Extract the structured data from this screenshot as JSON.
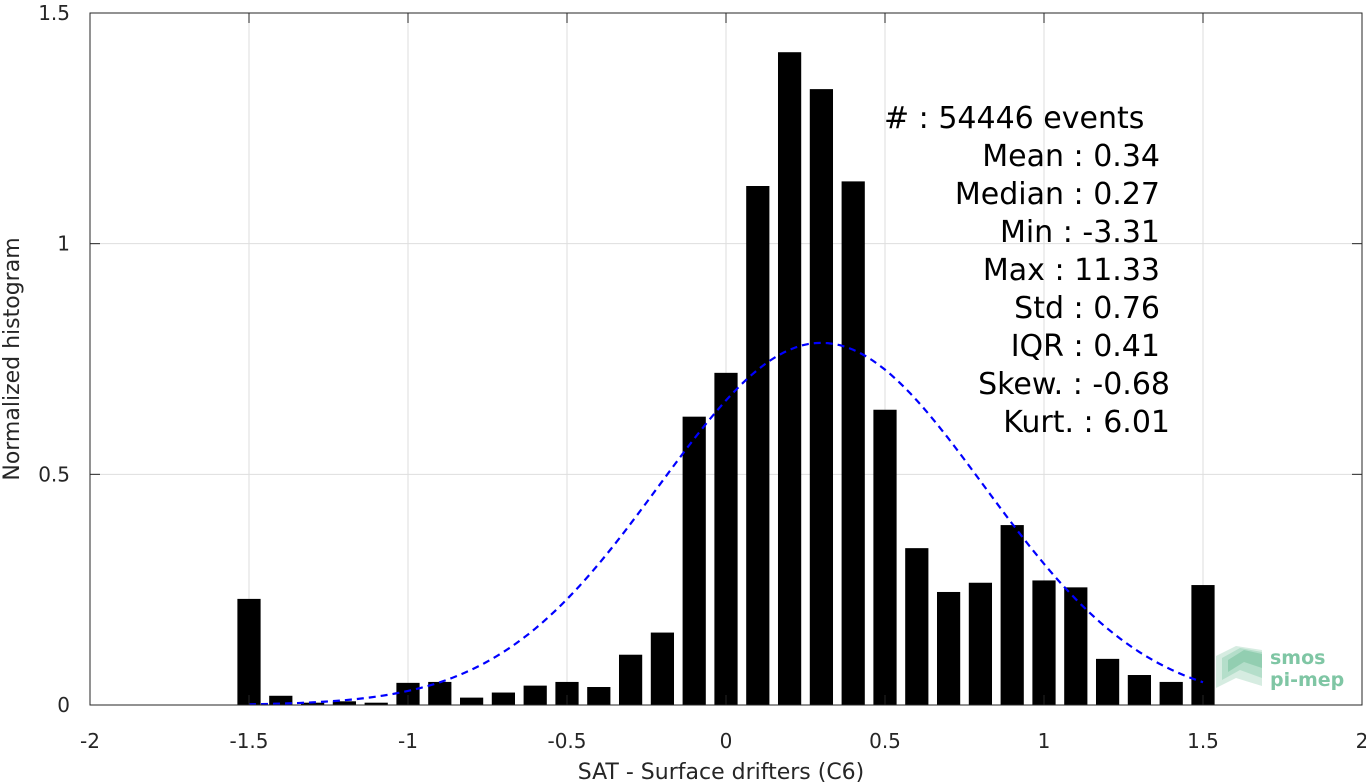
{
  "chart_data": {
    "type": "bar",
    "xlabel": "SAT - Surface drifters (C6)",
    "ylabel": "Normalized histogram",
    "xlim": [
      -2,
      2
    ],
    "ylim": [
      0,
      1.5
    ],
    "grid": true,
    "xticks": [
      "-2",
      "-1.5",
      "-1",
      "-0.5",
      "0",
      "0.5",
      "1",
      "1.5",
      "2"
    ],
    "yticks": [
      "0",
      "0.5",
      "1",
      "1.5"
    ],
    "bin_width": 0.1,
    "bars": {
      "x": [
        -1.5,
        -1.4,
        -1.3,
        -1.2,
        -1.1,
        -1.0,
        -0.9,
        -0.8,
        -0.7,
        -0.6,
        -0.5,
        -0.4,
        -0.3,
        -0.2,
        -0.1,
        0.0,
        0.1,
        0.2,
        0.3,
        0.4,
        0.5,
        0.6,
        0.7,
        0.8,
        0.9,
        1.0,
        1.1,
        1.2,
        1.3,
        1.4,
        1.5
      ],
      "values": [
        0.23,
        0.02,
        0.005,
        0.008,
        0.005,
        0.048,
        0.05,
        0.016,
        0.027,
        0.042,
        0.05,
        0.039,
        0.109,
        0.157,
        0.625,
        0.72,
        1.125,
        1.415,
        1.335,
        1.135,
        0.64,
        0.34,
        0.245,
        0.265,
        0.39,
        0.27,
        0.255,
        0.1,
        0.065,
        0.05,
        0.26
      ],
      "color": "#000000"
    },
    "fit_curve": {
      "style": "dashed",
      "color": "#0000ff",
      "mean": 0.3,
      "std": 0.51,
      "peak": 0.785,
      "x_range": [
        -1.5,
        1.5
      ]
    },
    "stats": [
      {
        "label": "#  : 54446 events"
      },
      {
        "label": "Mean : 0.34"
      },
      {
        "label": "Median : 0.27"
      },
      {
        "label": "Min : -3.31"
      },
      {
        "label": "Max : 11.33"
      },
      {
        "label": "Std : 0.76"
      },
      {
        "label": "IQR : 0.41"
      },
      {
        "label": "Skew. : -0.68"
      },
      {
        "label": "Kurt. : 6.01"
      }
    ]
  },
  "logo": {
    "line1": "smos",
    "line2": "pi-mep",
    "color": "#7fc6a4"
  }
}
